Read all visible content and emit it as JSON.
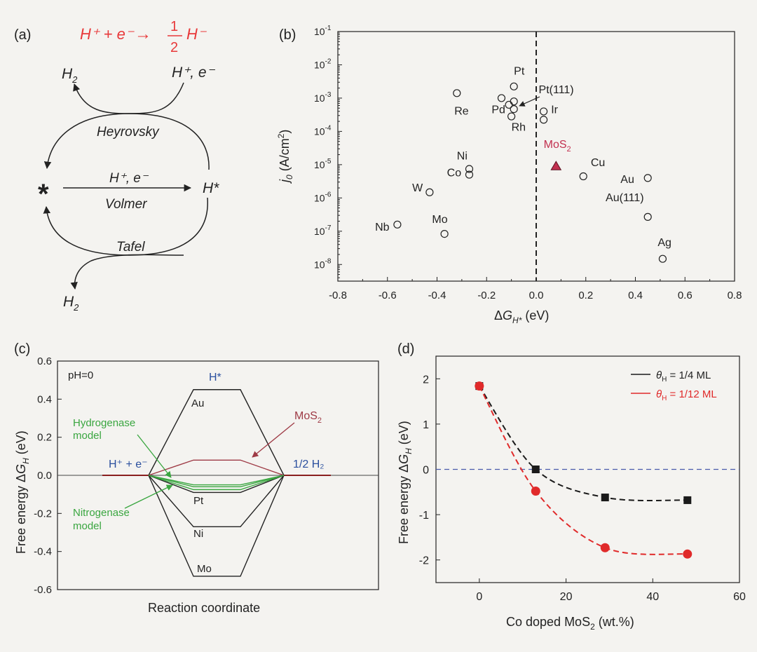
{
  "panel_labels": [
    "(a)",
    "(b)",
    "(c)",
    "(d)"
  ],
  "panel_a": {
    "reaction": {
      "lhs": "H⁺ + e⁻",
      "arrow": "→",
      "frac_num": "1",
      "frac_den": "2",
      "rhs": "H⁻"
    },
    "top_left_h2": "H2",
    "top_right": "H⁺, e⁻",
    "heyrovsky": "Heyrovsky",
    "star": "*",
    "volmer_top": "H⁺, e⁻",
    "volmer": "Volmer",
    "h_star": "H*",
    "tafel": "Tafel",
    "bottom_h2": "H2",
    "colors": {
      "reaction": "#e8393a",
      "ink": "#222222"
    }
  },
  "chart_data": [
    {
      "type": "scatter",
      "panel": "(b)",
      "xlabel": "ΔG_H* (eV)",
      "ylabel": "j_0 (A/cm²)",
      "xlim": [
        -0.8,
        0.8
      ],
      "ylim_log10": [
        -8.5,
        -1
      ],
      "yscale": "log",
      "x_ticks": [
        "-0.8",
        "-0.6",
        "-0.4",
        "-0.2",
        "0.0",
        "0.2",
        "0.4",
        "0.6",
        "0.8"
      ],
      "x_tick_values": [
        -0.8,
        -0.6,
        -0.4,
        -0.2,
        0.0,
        0.2,
        0.4,
        0.6,
        0.8
      ],
      "y_ticks": [
        {
          "exp": -1,
          "label": "10",
          "sup": "-1"
        },
        {
          "exp": -2,
          "label": "10",
          "sup": "-2"
        },
        {
          "exp": -3,
          "label": "10",
          "sup": "-3"
        },
        {
          "exp": -4,
          "label": "10",
          "sup": "-4"
        },
        {
          "exp": -5,
          "label": "10",
          "sup": "-5"
        },
        {
          "exp": -6,
          "label": "10",
          "sup": "-6"
        },
        {
          "exp": -7,
          "label": "10",
          "sup": "-7"
        },
        {
          "exp": -8,
          "label": "10",
          "sup": "-8"
        }
      ],
      "dashed_vline_x": 0.0,
      "points": [
        {
          "x": -0.09,
          "logy": -2.65,
          "marker": "circle"
        },
        {
          "x": -0.09,
          "logy": -3.1,
          "marker": "circle"
        },
        {
          "x": -0.14,
          "logy": -3.0,
          "marker": "circle"
        },
        {
          "x": -0.11,
          "logy": -3.2,
          "marker": "circle"
        },
        {
          "x": -0.09,
          "logy": -3.33,
          "marker": "circle"
        },
        {
          "x": -0.1,
          "logy": -3.55,
          "marker": "circle"
        },
        {
          "x": -0.32,
          "logy": -2.85,
          "marker": "circle"
        },
        {
          "x": 0.03,
          "logy": -3.4,
          "marker": "circle"
        },
        {
          "x": 0.03,
          "logy": -3.65,
          "marker": "circle"
        },
        {
          "x": -0.27,
          "logy": -5.13,
          "marker": "circle"
        },
        {
          "x": -0.27,
          "logy": -5.3,
          "marker": "circle"
        },
        {
          "x": -0.43,
          "logy": -5.83,
          "marker": "circle"
        },
        {
          "x": -0.56,
          "logy": -6.8,
          "marker": "circle"
        },
        {
          "x": -0.37,
          "logy": -7.08,
          "marker": "circle"
        },
        {
          "x": 0.19,
          "logy": -5.35,
          "marker": "circle"
        },
        {
          "x": 0.45,
          "logy": -5.4,
          "marker": "circle"
        },
        {
          "x": 0.45,
          "logy": -6.57,
          "marker": "circle"
        },
        {
          "x": 0.51,
          "logy": -7.83,
          "marker": "circle"
        },
        {
          "x": 0.08,
          "logy": -5.05,
          "marker": "triangle",
          "color": "#c2304f"
        }
      ],
      "labels": [
        {
          "text": "Pt",
          "x": -0.09,
          "logy": -2.3
        },
        {
          "text": "Pt(111)",
          "x": 0.01,
          "logy": -2.85
        },
        {
          "text": "Pd",
          "x": -0.18,
          "logy": -3.45
        },
        {
          "text": "Re",
          "x": -0.33,
          "logy": -3.5
        },
        {
          "text": "Ir",
          "x": 0.06,
          "logy": -3.45
        },
        {
          "text": "Rh",
          "x": -0.1,
          "logy": -3.98
        },
        {
          "text": "MoS",
          "sub": "2",
          "x": 0.03,
          "logy": -4.5,
          "color": "#c2304f"
        },
        {
          "text": "Ni",
          "x": -0.32,
          "logy": -4.85
        },
        {
          "text": "Co",
          "x": -0.36,
          "logy": -5.35
        },
        {
          "text": "W",
          "x": -0.5,
          "logy": -5.8
        },
        {
          "text": "Mo",
          "x": -0.42,
          "logy": -6.75
        },
        {
          "text": "Nb",
          "x": -0.65,
          "logy": -6.98
        },
        {
          "text": "Cu",
          "x": 0.22,
          "logy": -5.05
        },
        {
          "text": "Au",
          "x": 0.34,
          "logy": -5.55
        },
        {
          "text": "Au(111)",
          "x": 0.28,
          "logy": -6.1
        },
        {
          "text": "Ag",
          "x": 0.49,
          "logy": -7.45
        }
      ]
    },
    {
      "type": "line",
      "panel": "(c)",
      "xlabel": "Reaction coordinate",
      "ylabel": "Free energy ΔG_H (eV)",
      "ylim": [
        -0.6,
        0.6
      ],
      "y_ticks": [
        "0.6",
        "0.4",
        "0.2",
        "0.0",
        "-0.2",
        "-0.4",
        "-0.6"
      ],
      "y_tick_values": [
        0.6,
        0.4,
        0.2,
        0.0,
        -0.2,
        -0.4,
        -0.6
      ],
      "text_labels": {
        "ph": "pH=0",
        "h_star": "H*",
        "reactant": "H⁺ + e⁻",
        "product": "1/2 H₂",
        "hydrogenase": [
          "Hydrogenase",
          "model"
        ],
        "nitrogenase": [
          "Nitrogenase",
          "model"
        ],
        "mos2": "MoS",
        "mos2_sub": "2"
      },
      "series": [
        {
          "name": "Au",
          "value": 0.45,
          "color": "#222222"
        },
        {
          "name": "MoS2",
          "value": 0.08,
          "color": "#9e3a45"
        },
        {
          "name": "Pt",
          "value": -0.09,
          "color": "#222222"
        },
        {
          "name": "Ni",
          "value": -0.27,
          "color": "#222222"
        },
        {
          "name": "Mo",
          "value": -0.53,
          "color": "#222222"
        },
        {
          "name": "",
          "value": -0.05,
          "color": "#3aa640"
        },
        {
          "name": "",
          "value": -0.06,
          "color": "#3aa640"
        },
        {
          "name": "",
          "value": -0.075,
          "color": "#3aa640"
        }
      ],
      "colors": {
        "blue_text": "#2a4f9e",
        "green": "#3aa640",
        "mos2": "#9e3a45"
      }
    },
    {
      "type": "line",
      "panel": "(d)",
      "xlabel": "Co doped MoS₂ (wt.%)",
      "ylabel": "Free energy ΔG_H (eV)",
      "xlim": [
        -10,
        60
      ],
      "ylim": [
        -2.5,
        2.5
      ],
      "x_ticks": [
        "0",
        "20",
        "40",
        "60"
      ],
      "x_tick_values": [
        0,
        20,
        40,
        60
      ],
      "y_ticks": [
        "2",
        "1",
        "0",
        "-1",
        "-2"
      ],
      "y_tick_values": [
        2,
        1,
        0,
        -1,
        -2
      ],
      "zero_line": 0,
      "series": [
        {
          "name": "θH = 1/4 ML",
          "legend_theta": "θ",
          "legend_sub": "H",
          "legend_rest": " = 1/4 ML",
          "color": "#1a1a1a",
          "marker": "square",
          "x": [
            0,
            13,
            29,
            48
          ],
          "values": [
            1.84,
            0.0,
            -0.62,
            -0.68
          ]
        },
        {
          "name": "θH = 1/12 ML",
          "legend_theta": "θ",
          "legend_sub": "H",
          "legend_rest": " = 1/12 ML",
          "color": "#e02a2a",
          "marker": "circle",
          "x": [
            0,
            13,
            29,
            48
          ],
          "values": [
            1.84,
            -0.48,
            -1.73,
            -1.87
          ]
        }
      ],
      "legend_position": "top-right"
    }
  ]
}
